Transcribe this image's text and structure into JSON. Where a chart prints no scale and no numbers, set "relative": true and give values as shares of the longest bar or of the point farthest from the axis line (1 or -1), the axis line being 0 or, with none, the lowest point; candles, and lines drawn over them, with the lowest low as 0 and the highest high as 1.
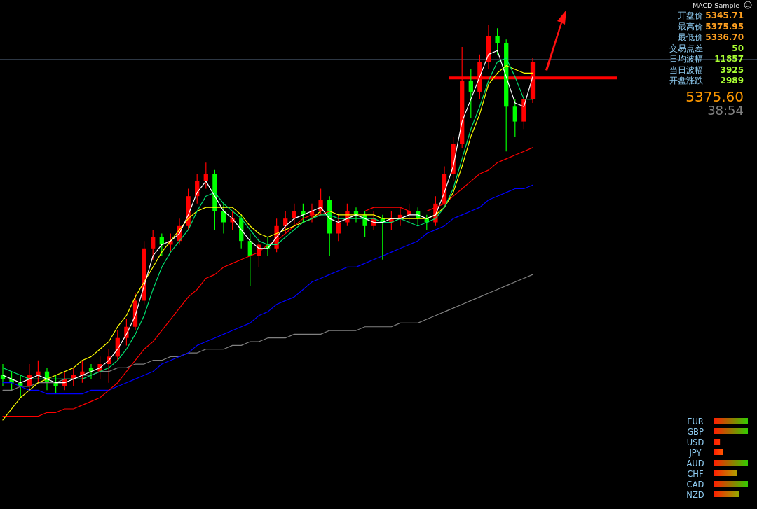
{
  "chart_data": [
    {
      "type": "candlestick",
      "relative": true,
      "grid": false,
      "categories": [
        null,
        null,
        null,
        null,
        null,
        null,
        null,
        null,
        null,
        null,
        null,
        null,
        null,
        null,
        null,
        null,
        null,
        null,
        null,
        null,
        null,
        null,
        null,
        null,
        null,
        null,
        null,
        null,
        null,
        null,
        null,
        null,
        null,
        null,
        null,
        null,
        null,
        null,
        null,
        null,
        null,
        null,
        null,
        null,
        null,
        null,
        null,
        null,
        null,
        null,
        null,
        null,
        null,
        null,
        null,
        null,
        null,
        null,
        null,
        null,
        null
      ],
      "ohlc": [
        [
          0.06,
          0.09,
          0.03,
          0.05
        ],
        [
          0.05,
          0.07,
          0.02,
          0.04
        ],
        [
          0.04,
          0.06,
          0.0,
          0.03
        ],
        [
          0.03,
          0.09,
          0.02,
          0.06
        ],
        [
          0.06,
          0.1,
          0.04,
          0.07
        ],
        [
          0.07,
          0.08,
          0.02,
          0.04
        ],
        [
          0.04,
          0.06,
          0.01,
          0.03
        ],
        [
          0.03,
          0.07,
          0.02,
          0.05
        ],
        [
          0.05,
          0.08,
          0.03,
          0.06
        ],
        [
          0.06,
          0.1,
          0.04,
          0.07
        ],
        [
          0.08,
          0.09,
          0.05,
          0.07
        ],
        [
          0.07,
          0.11,
          0.05,
          0.09
        ],
        [
          0.09,
          0.13,
          0.04,
          0.11
        ],
        [
          0.11,
          0.18,
          0.1,
          0.16
        ],
        [
          0.16,
          0.21,
          0.14,
          0.19
        ],
        [
          0.19,
          0.28,
          0.18,
          0.26
        ],
        [
          0.26,
          0.42,
          0.25,
          0.4
        ],
        [
          0.4,
          0.45,
          0.37,
          0.43
        ],
        [
          0.43,
          0.44,
          0.38,
          0.41
        ],
        [
          0.41,
          0.44,
          0.39,
          0.42
        ],
        [
          0.42,
          0.48,
          0.41,
          0.46
        ],
        [
          0.46,
          0.56,
          0.45,
          0.54
        ],
        [
          0.54,
          0.6,
          0.52,
          0.58
        ],
        [
          0.58,
          0.63,
          0.56,
          0.6
        ],
        [
          0.6,
          0.61,
          0.45,
          0.5
        ],
        [
          0.5,
          0.52,
          0.44,
          0.47
        ],
        [
          0.47,
          0.5,
          0.45,
          0.48
        ],
        [
          0.48,
          0.49,
          0.4,
          0.42
        ],
        [
          0.42,
          0.44,
          0.3,
          0.38
        ],
        [
          0.38,
          0.43,
          0.35,
          0.41
        ],
        [
          0.41,
          0.43,
          0.38,
          0.4
        ],
        [
          0.4,
          0.48,
          0.39,
          0.46
        ],
        [
          0.46,
          0.5,
          0.44,
          0.48
        ],
        [
          0.48,
          0.52,
          0.46,
          0.5
        ],
        [
          0.5,
          0.52,
          0.47,
          0.49
        ],
        [
          0.49,
          0.52,
          0.47,
          0.5
        ],
        [
          0.5,
          0.56,
          0.49,
          0.53
        ],
        [
          0.53,
          0.54,
          0.38,
          0.44
        ],
        [
          0.44,
          0.49,
          0.42,
          0.47
        ],
        [
          0.47,
          0.52,
          0.46,
          0.5
        ],
        [
          0.5,
          0.51,
          0.47,
          0.49
        ],
        [
          0.49,
          0.5,
          0.43,
          0.46
        ],
        [
          0.46,
          0.5,
          0.45,
          0.48
        ],
        [
          0.48,
          0.49,
          0.37,
          0.47
        ],
        [
          0.47,
          0.5,
          0.45,
          0.48
        ],
        [
          0.48,
          0.51,
          0.46,
          0.49
        ],
        [
          0.49,
          0.52,
          0.47,
          0.5
        ],
        [
          0.5,
          0.51,
          0.46,
          0.48
        ],
        [
          0.48,
          0.49,
          0.45,
          0.47
        ],
        [
          0.47,
          0.54,
          0.46,
          0.52
        ],
        [
          0.52,
          0.62,
          0.51,
          0.6
        ],
        [
          0.6,
          0.7,
          0.58,
          0.68
        ],
        [
          0.68,
          0.94,
          0.67,
          0.85
        ],
        [
          0.85,
          0.88,
          0.75,
          0.82
        ],
        [
          0.82,
          0.92,
          0.8,
          0.9
        ],
        [
          0.9,
          1.0,
          0.88,
          0.97
        ],
        [
          0.97,
          0.99,
          0.92,
          0.95
        ],
        [
          0.95,
          0.96,
          0.66,
          0.78
        ],
        [
          0.78,
          0.8,
          0.7,
          0.74
        ],
        [
          0.74,
          0.82,
          0.72,
          0.8
        ],
        [
          0.8,
          0.91,
          0.79,
          0.9
        ]
      ],
      "colors": [
        "#00ff00",
        "#00ff00",
        "#00ff00",
        "#ff0000",
        "#ff0000",
        "#00ff00",
        "#00ff00",
        "#ff0000",
        "#ff0000",
        "#ff0000",
        "#00ff00",
        "#ff0000",
        "#ff0000",
        "#ff0000",
        "#ff0000",
        "#ff0000",
        "#ff0000",
        "#ff0000",
        "#00ff00",
        "#ff0000",
        "#ff0000",
        "#ff0000",
        "#ff0000",
        "#ff0000",
        "#00ff00",
        "#00ff00",
        "#ff0000",
        "#00ff00",
        "#00ff00",
        "#ff0000",
        "#00ff00",
        "#ff0000",
        "#ff0000",
        "#ff0000",
        "#00ff00",
        "#ff0000",
        "#ff0000",
        "#00ff00",
        "#ff0000",
        "#ff0000",
        "#00ff00",
        "#00ff00",
        "#ff0000",
        "#00ff00",
        "#ff0000",
        "#ff0000",
        "#ff0000",
        "#00ff00",
        "#00ff00",
        "#ff0000",
        "#ff0000",
        "#ff0000",
        "#ff0000",
        "#00ff00",
        "#ff0000",
        "#ff0000",
        "#00ff00",
        "#00ff00",
        "#00ff00",
        "#ff0000",
        "#ff0000"
      ],
      "series": [
        {
          "type": "line",
          "color": "#808080",
          "values": [
            0.02,
            0.02,
            0.03,
            0.03,
            0.04,
            0.04,
            0.04,
            0.05,
            0.05,
            0.06,
            0.06,
            0.07,
            0.07,
            0.08,
            0.08,
            0.09,
            0.09,
            0.1,
            0.1,
            0.11,
            0.11,
            0.12,
            0.12,
            0.13,
            0.13,
            0.13,
            0.14,
            0.14,
            0.15,
            0.15,
            0.16,
            0.16,
            0.16,
            0.17,
            0.17,
            0.17,
            0.17,
            0.18,
            0.18,
            0.18,
            0.18,
            0.19,
            0.19,
            0.19,
            0.19,
            0.2,
            0.2,
            0.2,
            0.21,
            0.22,
            0.23,
            0.24,
            0.25,
            0.26,
            0.27,
            0.28,
            0.29,
            0.3,
            0.31,
            0.32,
            0.33
          ]
        },
        {
          "type": "line",
          "color": "#0000ff",
          "values": [
            0.04,
            0.04,
            0.03,
            0.02,
            0.02,
            0.01,
            0.01,
            0.01,
            0.01,
            0.01,
            0.02,
            0.02,
            0.02,
            0.03,
            0.04,
            0.05,
            0.06,
            0.07,
            0.09,
            0.1,
            0.11,
            0.12,
            0.14,
            0.15,
            0.16,
            0.17,
            0.18,
            0.19,
            0.2,
            0.22,
            0.23,
            0.25,
            0.26,
            0.27,
            0.29,
            0.31,
            0.32,
            0.33,
            0.34,
            0.35,
            0.35,
            0.36,
            0.37,
            0.38,
            0.39,
            0.4,
            0.41,
            0.42,
            0.44,
            0.45,
            0.46,
            0.48,
            0.49,
            0.5,
            0.51,
            0.53,
            0.54,
            0.55,
            0.56,
            0.56,
            0.57
          ]
        },
        {
          "type": "line",
          "color": "#ff0000",
          "values": [
            -0.05,
            -0.05,
            -0.05,
            -0.05,
            -0.05,
            -0.04,
            -0.04,
            -0.03,
            -0.03,
            -0.02,
            -0.01,
            0.0,
            0.02,
            0.04,
            0.07,
            0.1,
            0.13,
            0.15,
            0.18,
            0.21,
            0.24,
            0.27,
            0.29,
            0.32,
            0.33,
            0.35,
            0.36,
            0.37,
            0.38,
            0.39,
            0.41,
            0.42,
            0.44,
            0.46,
            0.48,
            0.49,
            0.49,
            0.5,
            0.5,
            0.5,
            0.5,
            0.5,
            0.51,
            0.51,
            0.51,
            0.51,
            0.5,
            0.5,
            0.5,
            0.51,
            0.52,
            0.54,
            0.56,
            0.58,
            0.6,
            0.61,
            0.63,
            0.64,
            0.65,
            0.66,
            0.67
          ]
        },
        {
          "type": "line",
          "color": "#ffff00",
          "values": [
            -0.06,
            -0.03,
            0.0,
            0.02,
            0.04,
            0.05,
            0.06,
            0.07,
            0.08,
            0.1,
            0.11,
            0.13,
            0.15,
            0.19,
            0.22,
            0.27,
            0.31,
            0.35,
            0.39,
            0.42,
            0.45,
            0.48,
            0.5,
            0.51,
            0.51,
            0.51,
            0.51,
            0.49,
            0.46,
            0.44,
            0.43,
            0.44,
            0.45,
            0.46,
            0.47,
            0.48,
            0.5,
            0.5,
            0.49,
            0.49,
            0.49,
            0.49,
            0.49,
            0.48,
            0.48,
            0.48,
            0.48,
            0.48,
            0.48,
            0.49,
            0.51,
            0.55,
            0.62,
            0.7,
            0.76,
            0.84,
            0.87,
            0.89,
            0.88,
            0.87,
            0.87
          ]
        },
        {
          "type": "line",
          "color": "#00e070",
          "values": [
            0.08,
            0.07,
            0.06,
            0.05,
            0.05,
            0.05,
            0.05,
            0.05,
            0.05,
            0.05,
            0.06,
            0.07,
            0.08,
            0.1,
            0.13,
            0.17,
            0.22,
            0.29,
            0.35,
            0.39,
            0.42,
            0.45,
            0.5,
            0.54,
            0.55,
            0.52,
            0.5,
            0.48,
            0.45,
            0.42,
            0.41,
            0.41,
            0.43,
            0.45,
            0.47,
            0.48,
            0.49,
            0.49,
            0.48,
            0.48,
            0.48,
            0.48,
            0.48,
            0.47,
            0.47,
            0.48,
            0.47,
            0.46,
            0.47,
            0.48,
            0.51,
            0.56,
            0.64,
            0.72,
            0.78,
            0.85,
            0.9,
            0.91,
            0.86,
            0.8,
            0.8
          ]
        },
        {
          "type": "line",
          "color": "#ffffff",
          "values": [
            0.06,
            0.05,
            0.04,
            0.05,
            0.06,
            0.05,
            0.04,
            0.04,
            0.05,
            0.06,
            0.07,
            0.08,
            0.1,
            0.13,
            0.17,
            0.22,
            0.3,
            0.38,
            0.41,
            0.42,
            0.44,
            0.49,
            0.55,
            0.58,
            0.54,
            0.5,
            0.48,
            0.45,
            0.42,
            0.4,
            0.4,
            0.43,
            0.46,
            0.48,
            0.49,
            0.5,
            0.51,
            0.48,
            0.47,
            0.48,
            0.49,
            0.48,
            0.47,
            0.47,
            0.48,
            0.48,
            0.49,
            0.49,
            0.48,
            0.49,
            0.55,
            0.62,
            0.74,
            0.8,
            0.86,
            0.92,
            0.93,
            0.86,
            0.79,
            0.78,
            0.86
          ]
        }
      ],
      "ref_lines": [
        {
          "axis": "y",
          "value": 0.906,
          "color": "#7088a8"
        },
        {
          "axis": "y",
          "value": 0.857,
          "color": "#ff0000"
        }
      ]
    },
    {
      "type": "other",
      "categories": [
        "开盘价",
        "最高价",
        "最低价",
        "交易点差",
        "日均波幅",
        "当日波幅",
        "开盘涨跌"
      ],
      "value_labels": [
        "5345.71",
        "5375.95",
        "5336.70",
        "50",
        "11857",
        "3925",
        "2989"
      ],
      "colors": [
        "#ffa020",
        "#ffa020",
        "#ffa020",
        "#aaff33",
        "#aaff33",
        "#aaff33",
        "#aaff33"
      ],
      "annotations": [
        "MACD Sample",
        "5375.60",
        "38:54"
      ]
    },
    {
      "type": "bar",
      "orientation": "horizontal",
      "relative": true,
      "categories": [
        "EUR",
        "GBP",
        "USD",
        "JPY",
        "AUD",
        "CHF",
        "CAD",
        "NZD"
      ],
      "values": [
        1,
        1,
        0.17,
        0.25,
        1,
        0.67,
        1,
        0.75
      ],
      "colors": [
        "#33cc00",
        "#33cc00",
        "#ff3300",
        "#ff5500",
        "#33cc00",
        "#b0a000",
        "#33cc00",
        "#90b000"
      ]
    }
  ]
}
